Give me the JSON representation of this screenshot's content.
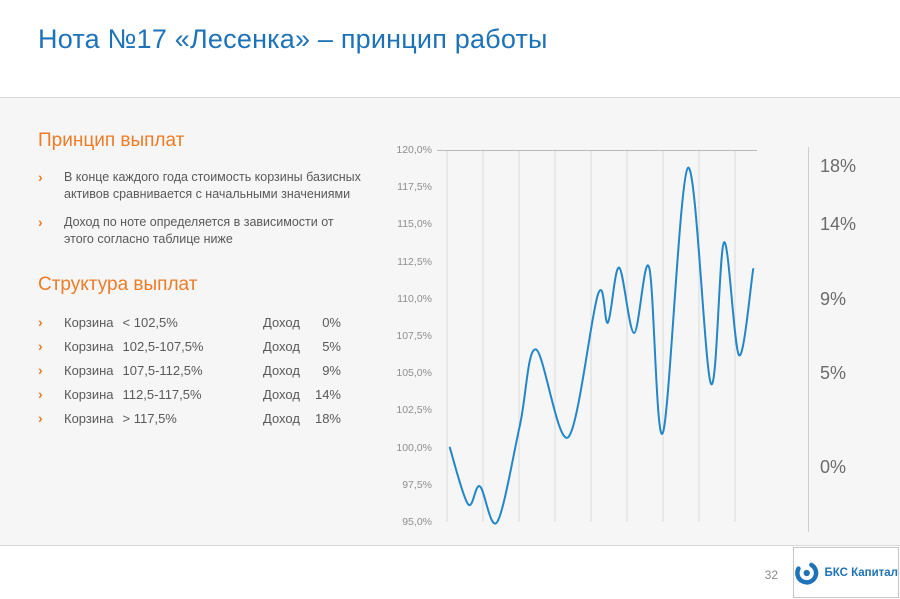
{
  "slide": {
    "title": "Нота №17 «Лесенка» – принцип работы"
  },
  "glyphs": {
    "chevron": "›"
  },
  "sections": {
    "principle": {
      "title": "Принцип выплат",
      "bullets": [
        "В конце каждого года стоимость корзины базисных активов сравнивается с начальными значениями",
        "Доход по ноте определяется в зависимости от этого согласно таблице ниже"
      ]
    },
    "structure": {
      "title": "Структура выплат",
      "rows": [
        {
          "basket": "Корзина",
          "condition": "< 102,5%",
          "income_label": "Доход",
          "income": "0%"
        },
        {
          "basket": "Корзина",
          "condition": "102,5-107,5%",
          "income_label": "Доход",
          "income": "5%"
        },
        {
          "basket": "Корзина",
          "condition": "107,5-112,5%",
          "income_label": "Доход",
          "income": "9%"
        },
        {
          "basket": "Корзина",
          "condition": "112,5-117,5%",
          "income_label": "Доход",
          "income": "14%"
        },
        {
          "basket": "Корзина",
          "condition": "> 117,5%",
          "income_label": "Доход",
          "income": "18%"
        }
      ]
    }
  },
  "chart_data": {
    "type": "line",
    "title": "",
    "ylim": [
      95,
      120
    ],
    "y_tick_labels": [
      "120,0%",
      "117,5%",
      "115,0%",
      "112,5%",
      "110,0%",
      "107,5%",
      "105,0%",
      "102,5%",
      "100,0%",
      "97,5%",
      "95,0%"
    ],
    "right_axis_labels": [
      {
        "label": "18%",
        "at_value": 118.9
      },
      {
        "label": "14%",
        "at_value": 115.0
      },
      {
        "label": "9%",
        "at_value": 110.0
      },
      {
        "label": "5%",
        "at_value": 105.0
      },
      {
        "label": "0%",
        "at_value": 98.7
      }
    ],
    "series": [
      {
        "name": "basket-performance",
        "points": [
          [
            4,
            100.0
          ],
          [
            9.7,
            96.2
          ],
          [
            13.4,
            97.4
          ],
          [
            18.8,
            95.0
          ],
          [
            25.9,
            101.5
          ],
          [
            30.9,
            106.6
          ],
          [
            41,
            100.7
          ],
          [
            50.3,
            110.3
          ],
          [
            53.4,
            108.4
          ],
          [
            56.9,
            112.1
          ],
          [
            61.6,
            107.7
          ],
          [
            66.3,
            112.1
          ],
          [
            70.6,
            101.0
          ],
          [
            78.4,
            118.8
          ],
          [
            85.6,
            104.3
          ],
          [
            89.7,
            113.8
          ],
          [
            94.4,
            106.2
          ],
          [
            98.8,
            112.0
          ]
        ]
      }
    ],
    "line_color": "#2386c8",
    "grid_color": "#d9d9d9",
    "vertical_gridlines": 9,
    "legend": "none"
  },
  "footer": {
    "page_number": "32",
    "logo_text": "БКС Капитал"
  }
}
